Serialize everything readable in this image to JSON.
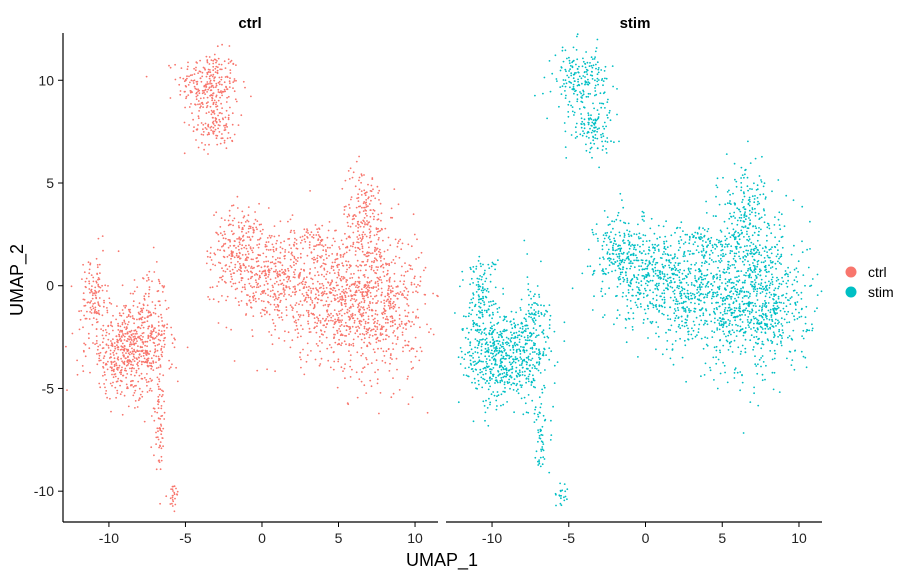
{
  "chart_data": {
    "type": "scatter",
    "facets": [
      "ctrl",
      "stim"
    ],
    "xlabel": "UMAP_1",
    "ylabel": "UMAP_2",
    "xlim": [
      -13,
      11.5
    ],
    "ylim": [
      -11.5,
      12.3
    ],
    "xticks": [
      -10,
      -5,
      0,
      5,
      10
    ],
    "yticks": [
      -10,
      -5,
      0,
      5,
      10
    ],
    "grid": false,
    "legend": {
      "position": "right",
      "entries": [
        {
          "label": "ctrl",
          "color": "#F8766D"
        },
        {
          "label": "stim",
          "color": "#00BFC4"
        }
      ]
    },
    "series": [
      {
        "name": "ctrl",
        "color": "#F8766D",
        "facet": "ctrl"
      },
      {
        "name": "stim",
        "color": "#00BFC4",
        "facet": "stim"
      }
    ],
    "clusters": {
      "ctrl": [
        {
          "cx": -3.5,
          "cy": 9.8,
          "sx": 1.0,
          "sy": 0.8,
          "n": 260
        },
        {
          "cx": -3.0,
          "cy": 7.8,
          "sx": 0.7,
          "sy": 0.6,
          "n": 110
        },
        {
          "cx": -1.5,
          "cy": 1.8,
          "sx": 0.9,
          "sy": 1.0,
          "n": 200
        },
        {
          "cx": 0.5,
          "cy": 0.5,
          "sx": 1.6,
          "sy": 1.2,
          "n": 350
        },
        {
          "cx": 4.0,
          "cy": -0.5,
          "sx": 1.8,
          "sy": 1.5,
          "n": 450
        },
        {
          "cx": 7.5,
          "cy": -1.0,
          "sx": 1.6,
          "sy": 1.8,
          "n": 650
        },
        {
          "cx": 6.7,
          "cy": 3.2,
          "sx": 0.8,
          "sy": 1.3,
          "n": 200
        },
        {
          "cx": 3.5,
          "cy": 2.2,
          "sx": 0.8,
          "sy": 0.4,
          "n": 50
        },
        {
          "cx": -11.0,
          "cy": -0.5,
          "sx": 0.45,
          "sy": 1.0,
          "n": 120
        },
        {
          "cx": -8.8,
          "cy": -3.2,
          "sx": 1.3,
          "sy": 1.1,
          "n": 520
        },
        {
          "cx": -7.3,
          "cy": -2.3,
          "sx": 0.6,
          "sy": 1.4,
          "n": 160
        },
        {
          "cx": -6.7,
          "cy": -6.5,
          "sx": 0.2,
          "sy": 1.2,
          "n": 70
        },
        {
          "cx": -5.8,
          "cy": -10.2,
          "sx": 0.2,
          "sy": 0.3,
          "n": 25
        }
      ],
      "stim": [
        {
          "cx": -4.2,
          "cy": 10.0,
          "sx": 0.9,
          "sy": 0.8,
          "n": 200
        },
        {
          "cx": -3.5,
          "cy": 7.7,
          "sx": 0.7,
          "sy": 0.6,
          "n": 110
        },
        {
          "cx": -1.5,
          "cy": 1.5,
          "sx": 0.9,
          "sy": 1.1,
          "n": 220
        },
        {
          "cx": 0.8,
          "cy": 0.3,
          "sx": 1.6,
          "sy": 1.2,
          "n": 380
        },
        {
          "cx": 4.2,
          "cy": -0.5,
          "sx": 1.8,
          "sy": 1.5,
          "n": 480
        },
        {
          "cx": 7.5,
          "cy": -0.8,
          "sx": 1.6,
          "sy": 1.8,
          "n": 650
        },
        {
          "cx": 6.5,
          "cy": 3.5,
          "sx": 0.9,
          "sy": 1.2,
          "n": 230
        },
        {
          "cx": 3.5,
          "cy": 2.2,
          "sx": 0.8,
          "sy": 0.4,
          "n": 50
        },
        {
          "cx": -10.7,
          "cy": -0.5,
          "sx": 0.5,
          "sy": 1.0,
          "n": 130
        },
        {
          "cx": -9.3,
          "cy": -3.5,
          "sx": 1.3,
          "sy": 1.2,
          "n": 560
        },
        {
          "cx": -7.2,
          "cy": -2.5,
          "sx": 0.6,
          "sy": 1.4,
          "n": 140
        },
        {
          "cx": -6.8,
          "cy": -7.2,
          "sx": 0.2,
          "sy": 0.9,
          "n": 50
        },
        {
          "cx": -5.5,
          "cy": -10.2,
          "sx": 0.2,
          "sy": 0.3,
          "n": 20
        }
      ]
    }
  }
}
